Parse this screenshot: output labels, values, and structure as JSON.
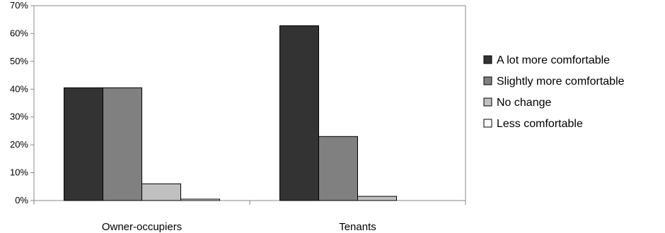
{
  "chart_data": {
    "type": "bar",
    "categories": [
      "Owner-occupiers",
      "Tenants"
    ],
    "series": [
      {
        "name": "A lot more comfortable",
        "color": "#333333",
        "values": [
          40.5,
          62.8
        ]
      },
      {
        "name": "Slightly more comfortable",
        "color": "#808080",
        "values": [
          40.5,
          23.0
        ]
      },
      {
        "name": "No change",
        "color": "#c0c0c0",
        "values": [
          6.0,
          1.5
        ]
      },
      {
        "name": "Less comfortable",
        "color": "#ffffff",
        "values": [
          0.5,
          0.0
        ]
      }
    ],
    "yticks": [
      "0%",
      "10%",
      "20%",
      "30%",
      "40%",
      "50%",
      "60%",
      "70%"
    ],
    "ylim": [
      0,
      70
    ],
    "grid": false,
    "legend_position": "right",
    "title": "",
    "xlabel": "",
    "ylabel": ""
  }
}
